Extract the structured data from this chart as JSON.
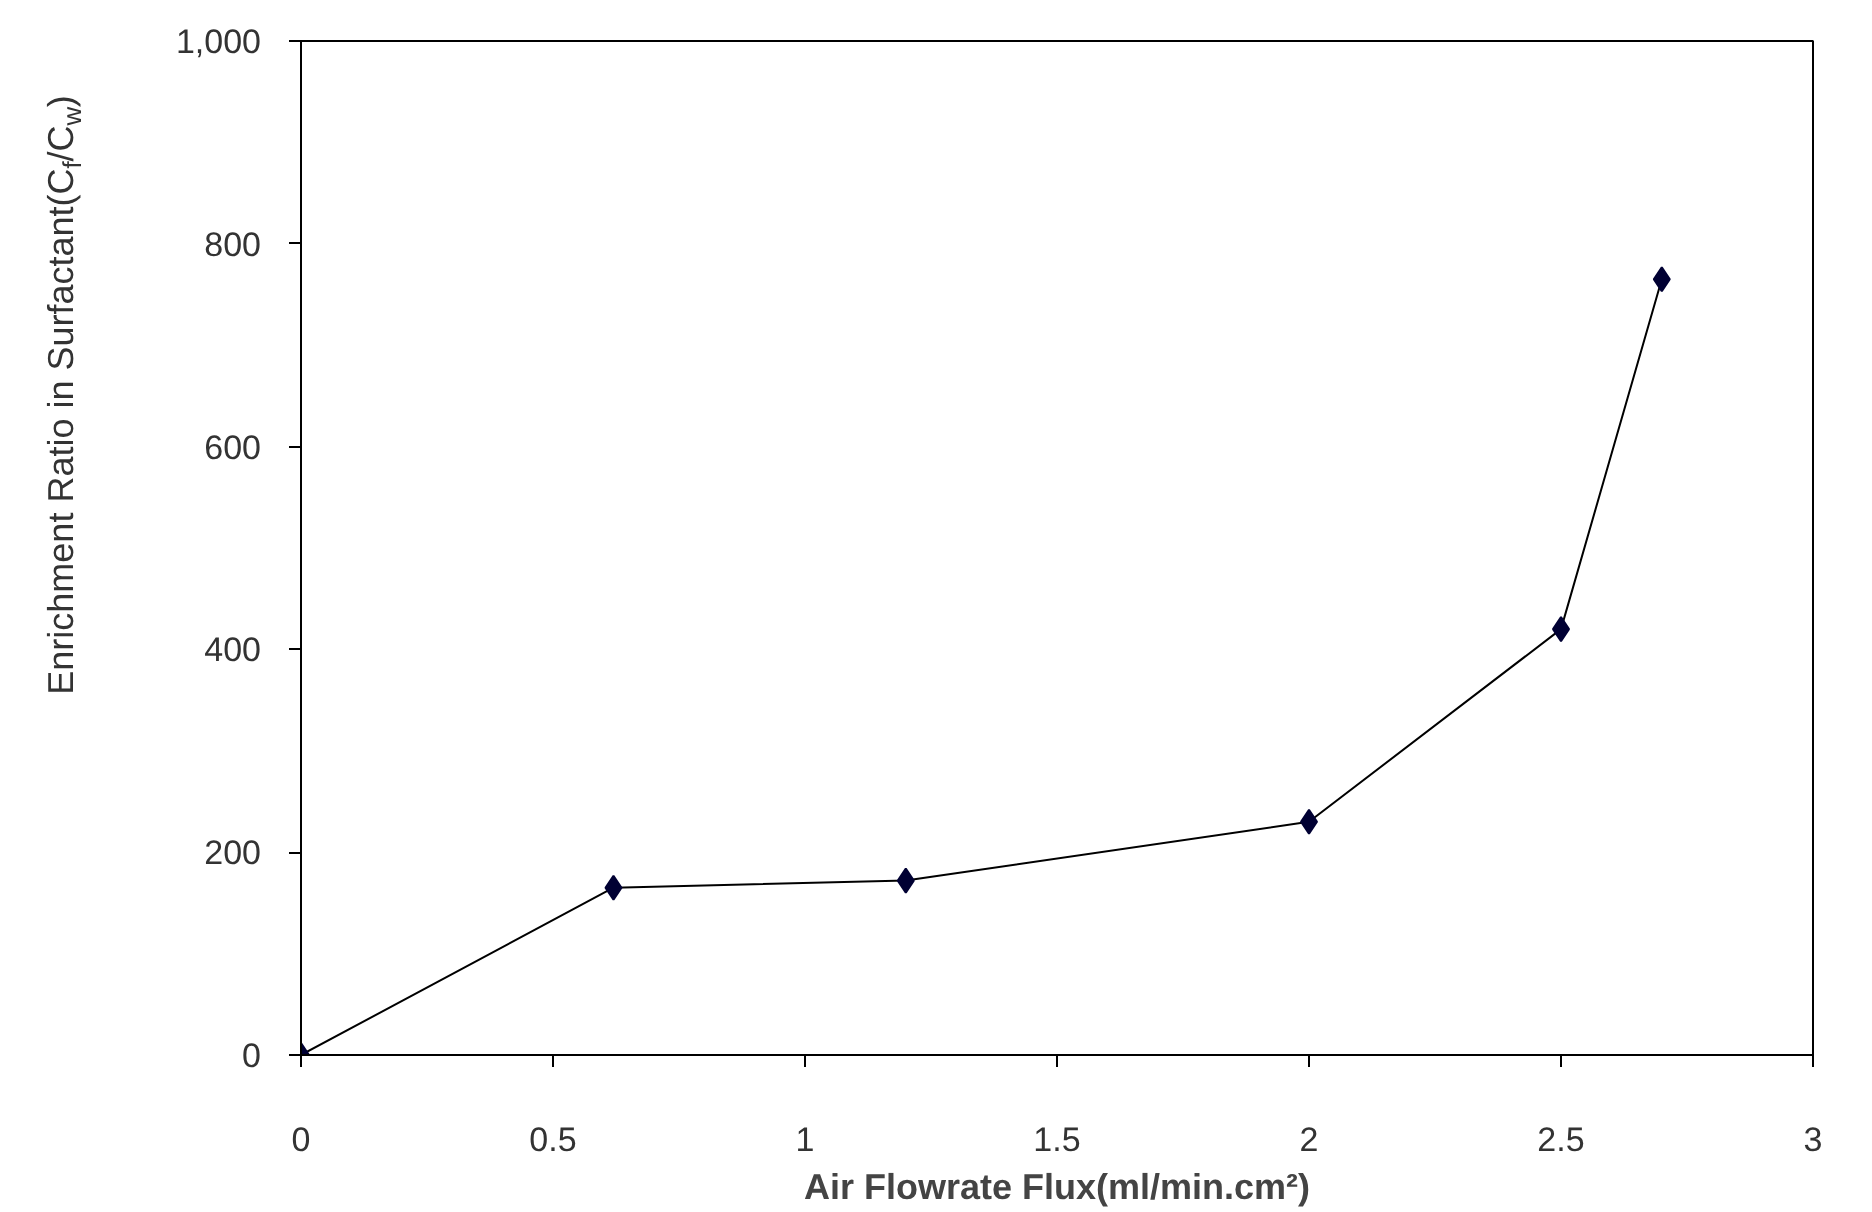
{
  "chart_data": {
    "type": "line",
    "xlabel": "Air Flowrate Flux(ml/min.cm²)",
    "ylabel": "Enrichment Ratio in Surfactant(C$_{f}$/C$_{w}$)",
    "x": [
      0,
      0.62,
      1.2,
      2.0,
      2.5,
      2.7
    ],
    "series": [
      {
        "color": "#000033",
        "values": [
          0,
          165,
          172,
          230,
          420,
          765
        ]
      }
    ],
    "xlim": [
      0,
      3
    ],
    "xticks": [
      0,
      0.5,
      1,
      1.5,
      2,
      2.5,
      3
    ],
    "ylim": [
      0,
      1000
    ],
    "yticks": [
      0,
      200,
      400,
      600,
      800,
      {
        "value": 1000,
        "label": "1,000"
      }
    ],
    "grid": false,
    "marker": "diamond",
    "line_style": "solid"
  }
}
